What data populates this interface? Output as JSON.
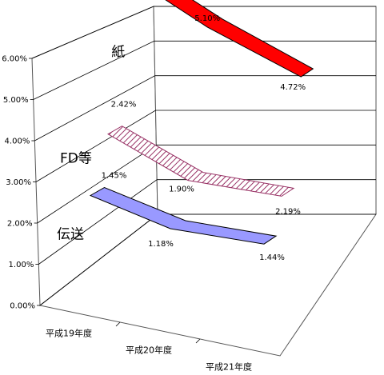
{
  "chart_data": {
    "type": "line",
    "style": "3d-ribbon",
    "categories": [
      "平成19年度",
      "平成20年度",
      "平成21年度"
    ],
    "ylim": [
      0,
      6
    ],
    "yticks": [
      "0.00%",
      "1.00%",
      "2.00%",
      "3.00%",
      "4.00%",
      "5.00%",
      "6.00%"
    ],
    "grid": true,
    "series": [
      {
        "name": "伝送",
        "values": [
          1.45,
          1.18,
          1.44
        ],
        "labels": [
          "1.45%",
          "1.18%",
          "1.44%"
        ],
        "color": "#9999ff",
        "fill": "solid"
      },
      {
        "name": "FD等",
        "values": [
          2.42,
          1.9,
          2.19
        ],
        "labels": [
          "2.42%",
          "1.90%",
          "2.19%"
        ],
        "color": "#993366",
        "fill": "hatched"
      },
      {
        "name": "紙",
        "values": [
          5.55,
          5.1,
          4.72
        ],
        "labels": [
          "5.55%",
          "5.10%",
          "4.72%"
        ],
        "color": "#ff0000",
        "fill": "solid"
      }
    ]
  }
}
